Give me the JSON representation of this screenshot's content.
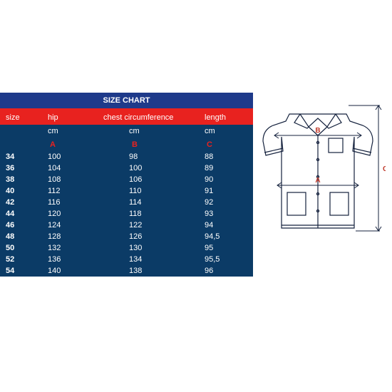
{
  "colors": {
    "title_bg": "#1e3a8a",
    "title_text": "#ffffff",
    "divider": "#e8221f",
    "header_bg": "#e8221f",
    "header_text": "#ffffff",
    "body_bg": "#0b3b66",
    "body_text": "#ffffff",
    "letter_text": "#e8221f",
    "diagram_stroke": "#14213d",
    "measure_line": "#14213d",
    "measure_label": "#c0392b"
  },
  "title": "SIZE CHART",
  "headers": {
    "size": "size",
    "hip": "hip",
    "chest": "chest circumference",
    "length": "length"
  },
  "unit": "cm",
  "letters": {
    "hip": "A",
    "chest": "B",
    "length": "C"
  },
  "rows": [
    {
      "size": "34",
      "hip": "100",
      "chest": "98",
      "length": "88"
    },
    {
      "size": "36",
      "hip": "104",
      "chest": "100",
      "length": "89"
    },
    {
      "size": "38",
      "hip": "108",
      "chest": "106",
      "length": "90"
    },
    {
      "size": "40",
      "hip": "112",
      "chest": "110",
      "length": "91"
    },
    {
      "size": "42",
      "hip": "116",
      "chest": "114",
      "length": "92"
    },
    {
      "size": "44",
      "hip": "120",
      "chest": "118",
      "length": "93"
    },
    {
      "size": "46",
      "hip": "124",
      "chest": "122",
      "length": "94"
    },
    {
      "size": "48",
      "hip": "128",
      "chest": "126",
      "length": "94,5"
    },
    {
      "size": "50",
      "hip": "132",
      "chest": "130",
      "length": "95"
    },
    {
      "size": "52",
      "hip": "136",
      "chest": "134",
      "length": "95,5"
    },
    {
      "size": "54",
      "hip": "140",
      "chest": "138",
      "length": "96"
    }
  ],
  "diagram_labels": {
    "chest": "B",
    "hip": "A",
    "length": "C"
  }
}
